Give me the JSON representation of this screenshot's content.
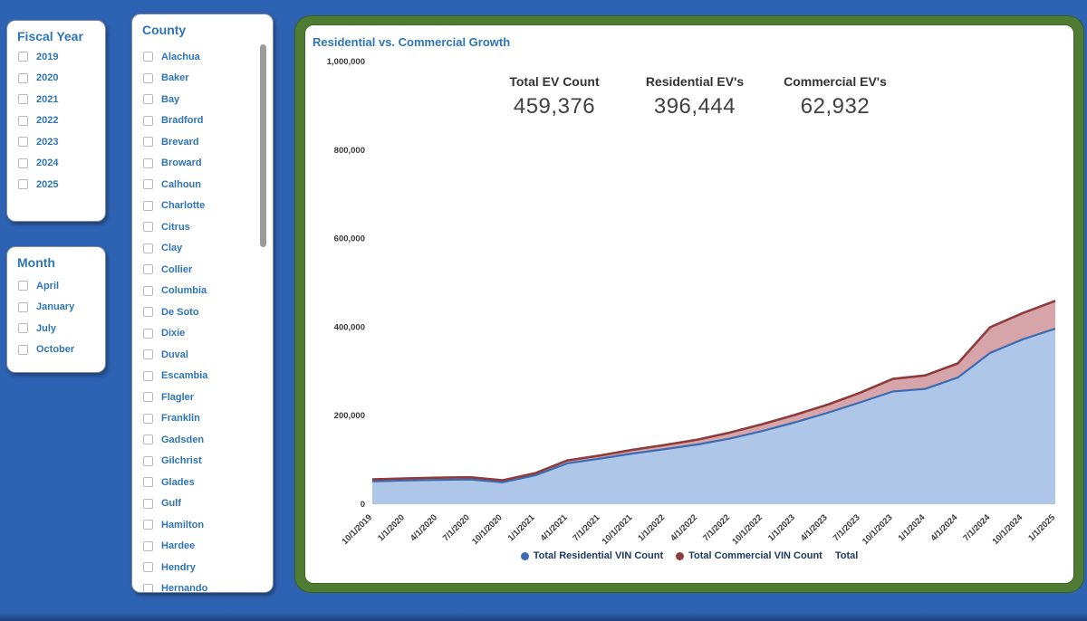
{
  "colors": {
    "page_background": "#2e63b4",
    "frame_green": "#4e7c33",
    "filter_text_blue": "#2e75b6",
    "legend_text": "#1f3864",
    "residential_line": "#3a6cb4",
    "residential_fill": "#aec6e8",
    "commercial_line": "#8e3b3b",
    "commercial_fill": "#d6a4a9"
  },
  "filters": {
    "fiscal_year": {
      "title": "Fiscal Year",
      "items": [
        "2019",
        "2020",
        "2021",
        "2022",
        "2023",
        "2024",
        "2025"
      ]
    },
    "month": {
      "title": "Month",
      "items": [
        "April",
        "January",
        "July",
        "October"
      ]
    },
    "county": {
      "title": "County",
      "items": [
        "Alachua",
        "Baker",
        "Bay",
        "Bradford",
        "Brevard",
        "Broward",
        "Calhoun",
        "Charlotte",
        "Citrus",
        "Clay",
        "Collier",
        "Columbia",
        "De Soto",
        "Dixie",
        "Duval",
        "Escambia",
        "Flagler",
        "Franklin",
        "Gadsden",
        "Gilchrist",
        "Glades",
        "Gulf",
        "Hamilton",
        "Hardee",
        "Hendry",
        "Hernando"
      ]
    }
  },
  "kpis": [
    {
      "label": "Total EV Count",
      "value": "459,376"
    },
    {
      "label": "Residential EV's",
      "value": "396,444"
    },
    {
      "label": "Commercial EV's",
      "value": "62,932"
    }
  ],
  "chart_data": {
    "type": "area",
    "stacked": true,
    "title": "Residential vs. Commercial Growth",
    "categories": [
      "10/1/2019",
      "1/1/2020",
      "4/1/2020",
      "7/1/2020",
      "10/1/2020",
      "1/1/2021",
      "4/1/2021",
      "7/1/2021",
      "10/1/2021",
      "1/1/2022",
      "4/1/2022",
      "7/1/2022",
      "10/1/2022",
      "1/1/2023",
      "4/1/2023",
      "7/1/2023",
      "10/1/2023",
      "1/1/2024",
      "4/1/2024",
      "7/1/2024",
      "10/1/2024",
      "1/1/2025"
    ],
    "series": [
      {
        "name": "Total Residential VIN Count",
        "color": "#3a6cb4",
        "fill": "#aec6e8",
        "values": [
          51500,
          53500,
          55000,
          56000,
          49500,
          65000,
          92500,
          103000,
          114500,
          124500,
          135000,
          148500,
          165500,
          185000,
          206500,
          230000,
          254500,
          260500,
          286000,
          342000,
          372500,
          396444
        ]
      },
      {
        "name": "Total Commercial VIN Count",
        "color": "#8e3b3b",
        "fill": "#d6a4a9",
        "values": [
          4500,
          4500,
          5000,
          5000,
          4500,
          5000,
          6500,
          7000,
          8500,
          9500,
          11000,
          13500,
          15500,
          17000,
          18500,
          22000,
          28500,
          30500,
          32000,
          58000,
          59500,
          62932
        ]
      }
    ],
    "ylim": [
      0,
      1000000
    ],
    "y_ticks": [
      {
        "value": 0,
        "label": "0"
      },
      {
        "value": 200000,
        "label": "200,000"
      },
      {
        "value": 400000,
        "label": "400,000"
      },
      {
        "value": 600000,
        "label": "600,000"
      },
      {
        "value": 800000,
        "label": "800,000"
      },
      {
        "value": 1000000,
        "label": "1,000,000"
      }
    ],
    "grid": false,
    "legend_position": "bottom",
    "legend_items": [
      {
        "label": "Total Residential VIN Count",
        "color": "#3a6cb4"
      },
      {
        "label": "Total Commercial VIN Count",
        "color": "#8e3b3b"
      },
      {
        "label": "Total",
        "color": null
      }
    ]
  }
}
